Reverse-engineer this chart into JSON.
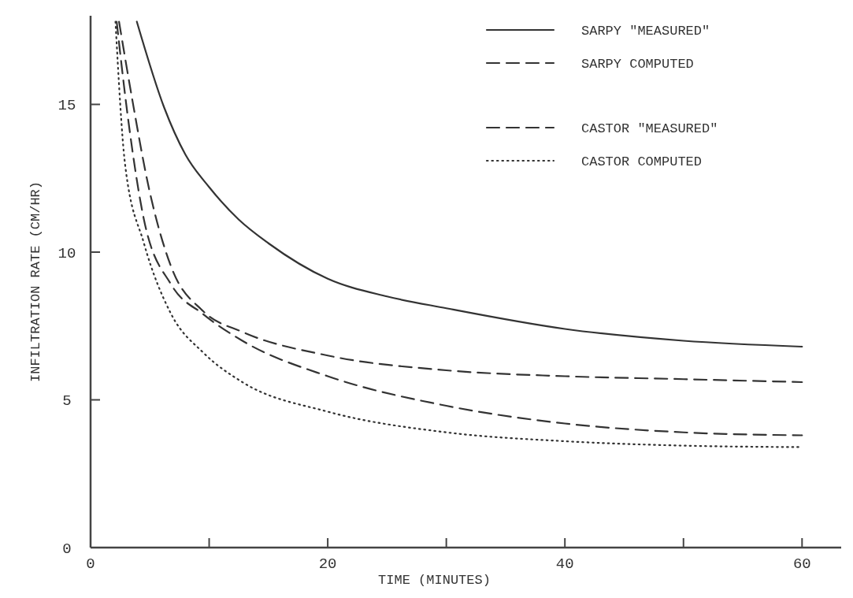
{
  "chart_data": {
    "type": "line",
    "xlabel": "TIME (MINUTES)",
    "ylabel": "INFILTRATION RATE (CM/HR)",
    "xlim": [
      0,
      63.3
    ],
    "ylim": [
      0,
      18
    ],
    "xticks": [
      0,
      {
        "value": 10,
        "label": null
      },
      20,
      {
        "value": 30,
        "label": null
      },
      40,
      {
        "value": 50,
        "label": null
      },
      60
    ],
    "yticks": [
      0,
      5,
      10,
      15
    ],
    "grid": false,
    "legend": "top right",
    "series": [
      {
        "name": "SARPY \"MEASURED\"",
        "color": "#333333",
        "line_style": "solid",
        "x": [
          3.9,
          6.2,
          8,
          10,
          12.5,
          15,
          20,
          25,
          30,
          40,
          50,
          60
        ],
        "values": [
          17.8,
          14.9,
          13.3,
          12.2,
          11.1,
          10.3,
          9.1,
          8.5,
          8.1,
          7.4,
          7.0,
          6.8
        ]
      },
      {
        "name": "SARPY COMPUTED",
        "color": "#333333",
        "line_style": "dashed",
        "x": [
          2.4,
          3.5,
          4.9,
          6.8,
          9.5,
          12.8,
          20,
          30,
          40,
          50,
          60
        ],
        "values": [
          17.8,
          15.2,
          12.2,
          9.5,
          8.0,
          7.3,
          6.5,
          6.0,
          5.8,
          5.7,
          5.6
        ]
      },
      {
        "name": "CASTOR \"MEASURED\"",
        "color": "#333333",
        "line_style": "dashed",
        "x": [
          2.2,
          3.2,
          4.5,
          6.8,
          9.5,
          12.8,
          20,
          30,
          40,
          50,
          60
        ],
        "values": [
          17.8,
          14.4,
          11.1,
          8.9,
          7.9,
          7.0,
          5.8,
          4.8,
          4.2,
          3.9,
          3.8
        ]
      },
      {
        "name": "CASTOR COMPUTED",
        "color": "#333333",
        "line_style": "dotted",
        "x": [
          2.1,
          2.9,
          4.5,
          6.8,
          9.5,
          12.8,
          20,
          30,
          40,
          50,
          60
        ],
        "values": [
          17.8,
          13.0,
          10.3,
          7.9,
          6.6,
          5.6,
          4.6,
          3.9,
          3.6,
          3.45,
          3.4
        ]
      }
    ]
  }
}
